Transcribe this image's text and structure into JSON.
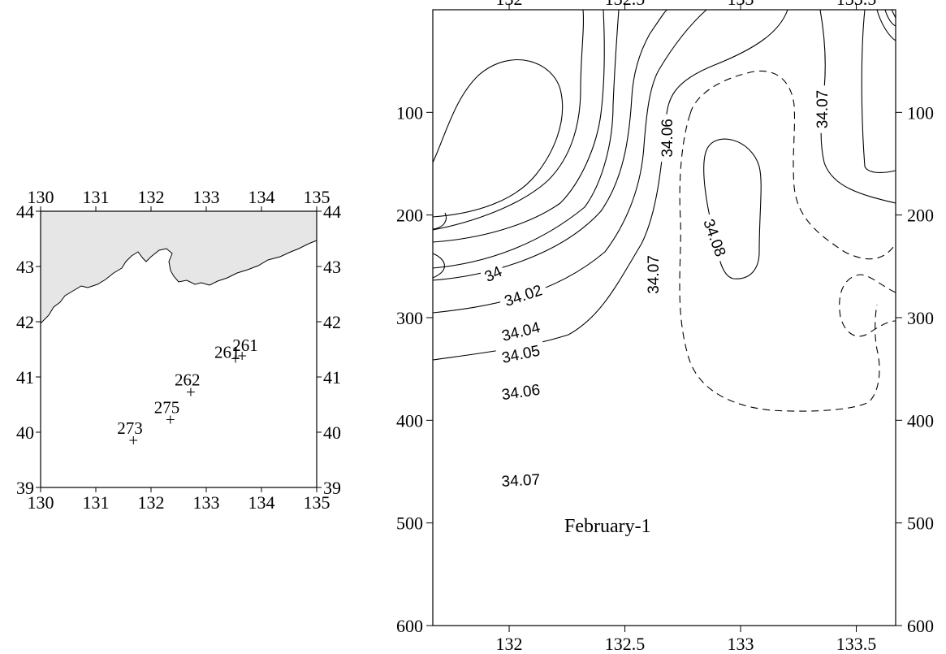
{
  "chart_data": [
    {
      "type": "map",
      "xlim": [
        130,
        135
      ],
      "ylim": [
        39,
        44
      ],
      "x_ticks": [
        "130",
        "131",
        "132",
        "133",
        "134",
        "135"
      ],
      "y_ticks": [
        "39",
        "40",
        "41",
        "42",
        "43",
        "44"
      ],
      "stations": [
        {
          "label": "261",
          "lon": 133.65,
          "lat": 41.35
        },
        {
          "label": "261",
          "lon": 133.53,
          "lat": 41.3
        },
        {
          "label": "262",
          "lon": 132.72,
          "lat": 40.7
        },
        {
          "label": "275",
          "lon": 132.35,
          "lat": 40.2
        },
        {
          "label": "273",
          "lon": 131.68,
          "lat": 39.82
        }
      ]
    },
    {
      "type": "contour",
      "annotation": "February-1",
      "xlim": [
        131.67,
        133.67
      ],
      "ylim": [
        600,
        0
      ],
      "x_ticks": [
        "132",
        "132.5",
        "133",
        "133.5"
      ],
      "y_ticks": [
        "100",
        "200",
        "300",
        "400",
        "500",
        "600"
      ],
      "contour_labels": [
        {
          "text": "34",
          "lon": 131.93,
          "depth": 257
        },
        {
          "text": "34.02",
          "lon": 132.06,
          "depth": 278
        },
        {
          "text": "34.04",
          "lon": 132.05,
          "depth": 313
        },
        {
          "text": "34.05",
          "lon": 132.05,
          "depth": 335
        },
        {
          "text": "34.06",
          "lon": 132.05,
          "depth": 372
        },
        {
          "text": "34.07",
          "lon": 132.05,
          "depth": 458
        },
        {
          "text": "34.06",
          "lon": 132.68,
          "depth": 125
        },
        {
          "text": "34.07",
          "lon": 132.62,
          "depth": 258
        },
        {
          "text": "34.08",
          "lon": 132.89,
          "depth": 222
        },
        {
          "text": "34.07",
          "lon": 133.35,
          "depth": 97
        }
      ]
    }
  ]
}
